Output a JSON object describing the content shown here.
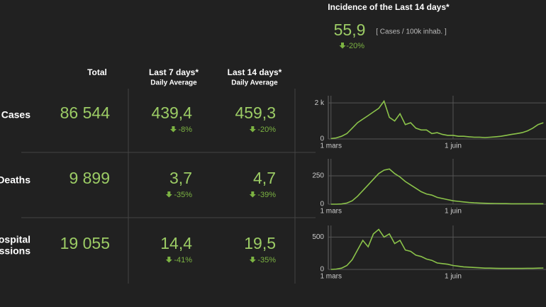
{
  "incidence": {
    "title": "Incidence of the Last 14 days*",
    "value": "55,9",
    "unit": "[ Cases / 100k inhab. ]",
    "change": "-20%"
  },
  "table": {
    "headers": [
      {
        "title": "Total"
      },
      {
        "title": "Last 7 days*",
        "subtitle": "Daily Average"
      },
      {
        "title": "Last 14 days*",
        "subtitle": "Daily Average"
      }
    ],
    "rows": [
      {
        "label": [
          "Cases"
        ],
        "total": "86 544",
        "avg7": "439,4",
        "change7": "-8%",
        "avg14": "459,3",
        "change14": "-20%"
      },
      {
        "label": [
          "Deaths"
        ],
        "total": "9 899",
        "avg7": "3,7",
        "change7": "-35%",
        "avg14": "4,7",
        "change14": "-39%"
      },
      {
        "label": [
          "ospital",
          "issions"
        ],
        "total": "19 055",
        "avg7": "14,4",
        "change7": "-41%",
        "avg14": "19,5",
        "change14": "-35%"
      }
    ]
  },
  "chart_data": [
    {
      "type": "line",
      "color": "#8bc34a",
      "grid": true,
      "x": [
        0,
        4,
        8,
        12,
        16,
        20,
        24,
        28,
        32,
        36,
        40,
        44,
        48,
        52,
        56,
        60,
        64,
        68,
        72,
        76,
        80,
        84,
        88,
        92,
        96,
        100,
        104,
        108,
        112,
        116,
        120,
        124,
        128,
        132,
        136,
        140,
        144,
        148,
        152,
        156,
        160
      ],
      "values": [
        20,
        60,
        150,
        300,
        600,
        900,
        1100,
        1300,
        1500,
        1700,
        2100,
        1200,
        1000,
        1400,
        800,
        900,
        600,
        500,
        500,
        300,
        350,
        250,
        200,
        200,
        150,
        150,
        120,
        100,
        100,
        80,
        100,
        120,
        150,
        200,
        250,
        300,
        350,
        450,
        600,
        800,
        900
      ],
      "xlim": [
        -2,
        162
      ],
      "ylim": [
        0,
        2400
      ],
      "xticks": [
        {
          "value": 0,
          "label": "1 mars"
        },
        {
          "value": 92,
          "label": "1 juin"
        }
      ],
      "yticks": [
        0,
        {
          "value": 2000,
          "label": "2 k"
        }
      ]
    },
    {
      "type": "line",
      "color": "#8bc34a",
      "grid": true,
      "x": [
        0,
        4,
        8,
        12,
        16,
        20,
        24,
        28,
        32,
        36,
        40,
        44,
        48,
        52,
        56,
        60,
        64,
        68,
        72,
        76,
        80,
        84,
        88,
        92,
        96,
        100,
        104,
        108,
        112,
        116,
        120,
        124,
        128,
        132,
        136,
        140,
        144,
        148,
        152,
        156,
        160
      ],
      "values": [
        0,
        0,
        2,
        10,
        30,
        70,
        120,
        170,
        220,
        270,
        300,
        310,
        270,
        240,
        200,
        170,
        140,
        110,
        90,
        80,
        60,
        50,
        40,
        30,
        25,
        20,
        15,
        12,
        10,
        8,
        7,
        6,
        5,
        5,
        4,
        4,
        4,
        4,
        4,
        4,
        4
      ],
      "xlim": [
        -2,
        162
      ],
      "ylim": [
        0,
        400
      ],
      "xticks": [
        {
          "value": 0,
          "label": "1 mars"
        },
        {
          "value": 92,
          "label": "1 juin"
        }
      ],
      "yticks": [
        0,
        250
      ]
    },
    {
      "type": "line",
      "color": "#8bc34a",
      "grid": true,
      "x": [
        0,
        4,
        8,
        12,
        16,
        20,
        24,
        28,
        32,
        36,
        40,
        44,
        48,
        52,
        56,
        60,
        64,
        68,
        72,
        76,
        80,
        84,
        88,
        92,
        96,
        100,
        104,
        108,
        112,
        116,
        120,
        124,
        128,
        132,
        136,
        140,
        144,
        148,
        152,
        156,
        160
      ],
      "values": [
        0,
        5,
        20,
        60,
        150,
        300,
        450,
        350,
        550,
        620,
        500,
        550,
        400,
        450,
        300,
        280,
        220,
        200,
        160,
        140,
        100,
        90,
        80,
        60,
        50,
        40,
        35,
        30,
        25,
        20,
        20,
        18,
        15,
        15,
        15,
        15,
        15,
        18,
        18,
        20,
        22
      ],
      "xlim": [
        -2,
        162
      ],
      "ylim": [
        0,
        680
      ],
      "xticks": [
        {
          "value": 0,
          "label": "1 mars"
        },
        {
          "value": 92,
          "label": "1 juin"
        }
      ],
      "yticks": [
        0,
        500
      ]
    }
  ]
}
